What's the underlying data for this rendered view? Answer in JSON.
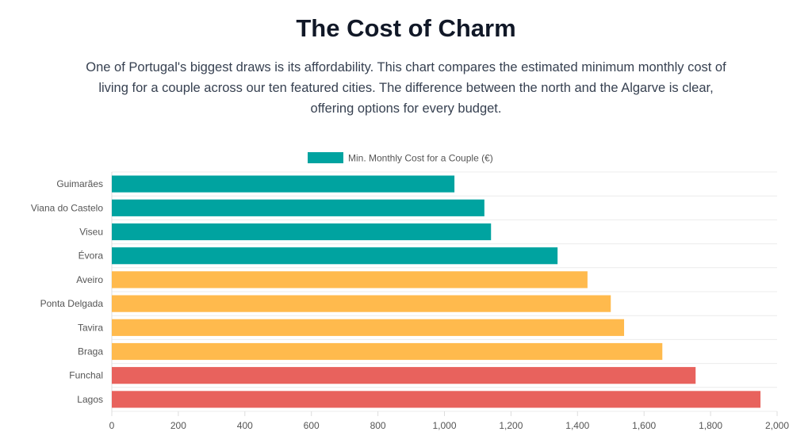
{
  "header": {
    "title": "The Cost of Charm",
    "subtitle": "One of Portugal's biggest draws is its affordability. This chart compares the estimated minimum monthly cost of living for a couple across our ten featured cities. The difference between the north and the Algarve is clear, offering options for every budget."
  },
  "chart_data": {
    "type": "bar",
    "orientation": "horizontal",
    "categories": [
      "Guimarães",
      "Viana do Castelo",
      "Viseu",
      "Évora",
      "Aveiro",
      "Ponta Delgada",
      "Tavira",
      "Braga",
      "Funchal",
      "Lagos"
    ],
    "series": [
      {
        "name": "Min. Monthly Cost for a Couple (€)",
        "values": [
          1030,
          1120,
          1140,
          1340,
          1430,
          1500,
          1540,
          1655,
          1755,
          1950
        ]
      }
    ],
    "bar_colors": [
      "#00a3a0",
      "#00a3a0",
      "#00a3a0",
      "#00a3a0",
      "#ffba4d",
      "#ffba4d",
      "#ffba4d",
      "#ffba4d",
      "#e8625d",
      "#e8625d"
    ],
    "legend_color": "#00a3a0",
    "xlim": [
      0,
      2000
    ],
    "x_ticks": [
      0,
      200,
      400,
      600,
      800,
      1000,
      1200,
      1400,
      1600,
      1800,
      2000
    ],
    "x_tick_labels": [
      "0",
      "200",
      "400",
      "600",
      "800",
      "1,000",
      "1,200",
      "1,400",
      "1,600",
      "1,800",
      "2,000"
    ],
    "legend_position": "top-center",
    "grid": true
  }
}
